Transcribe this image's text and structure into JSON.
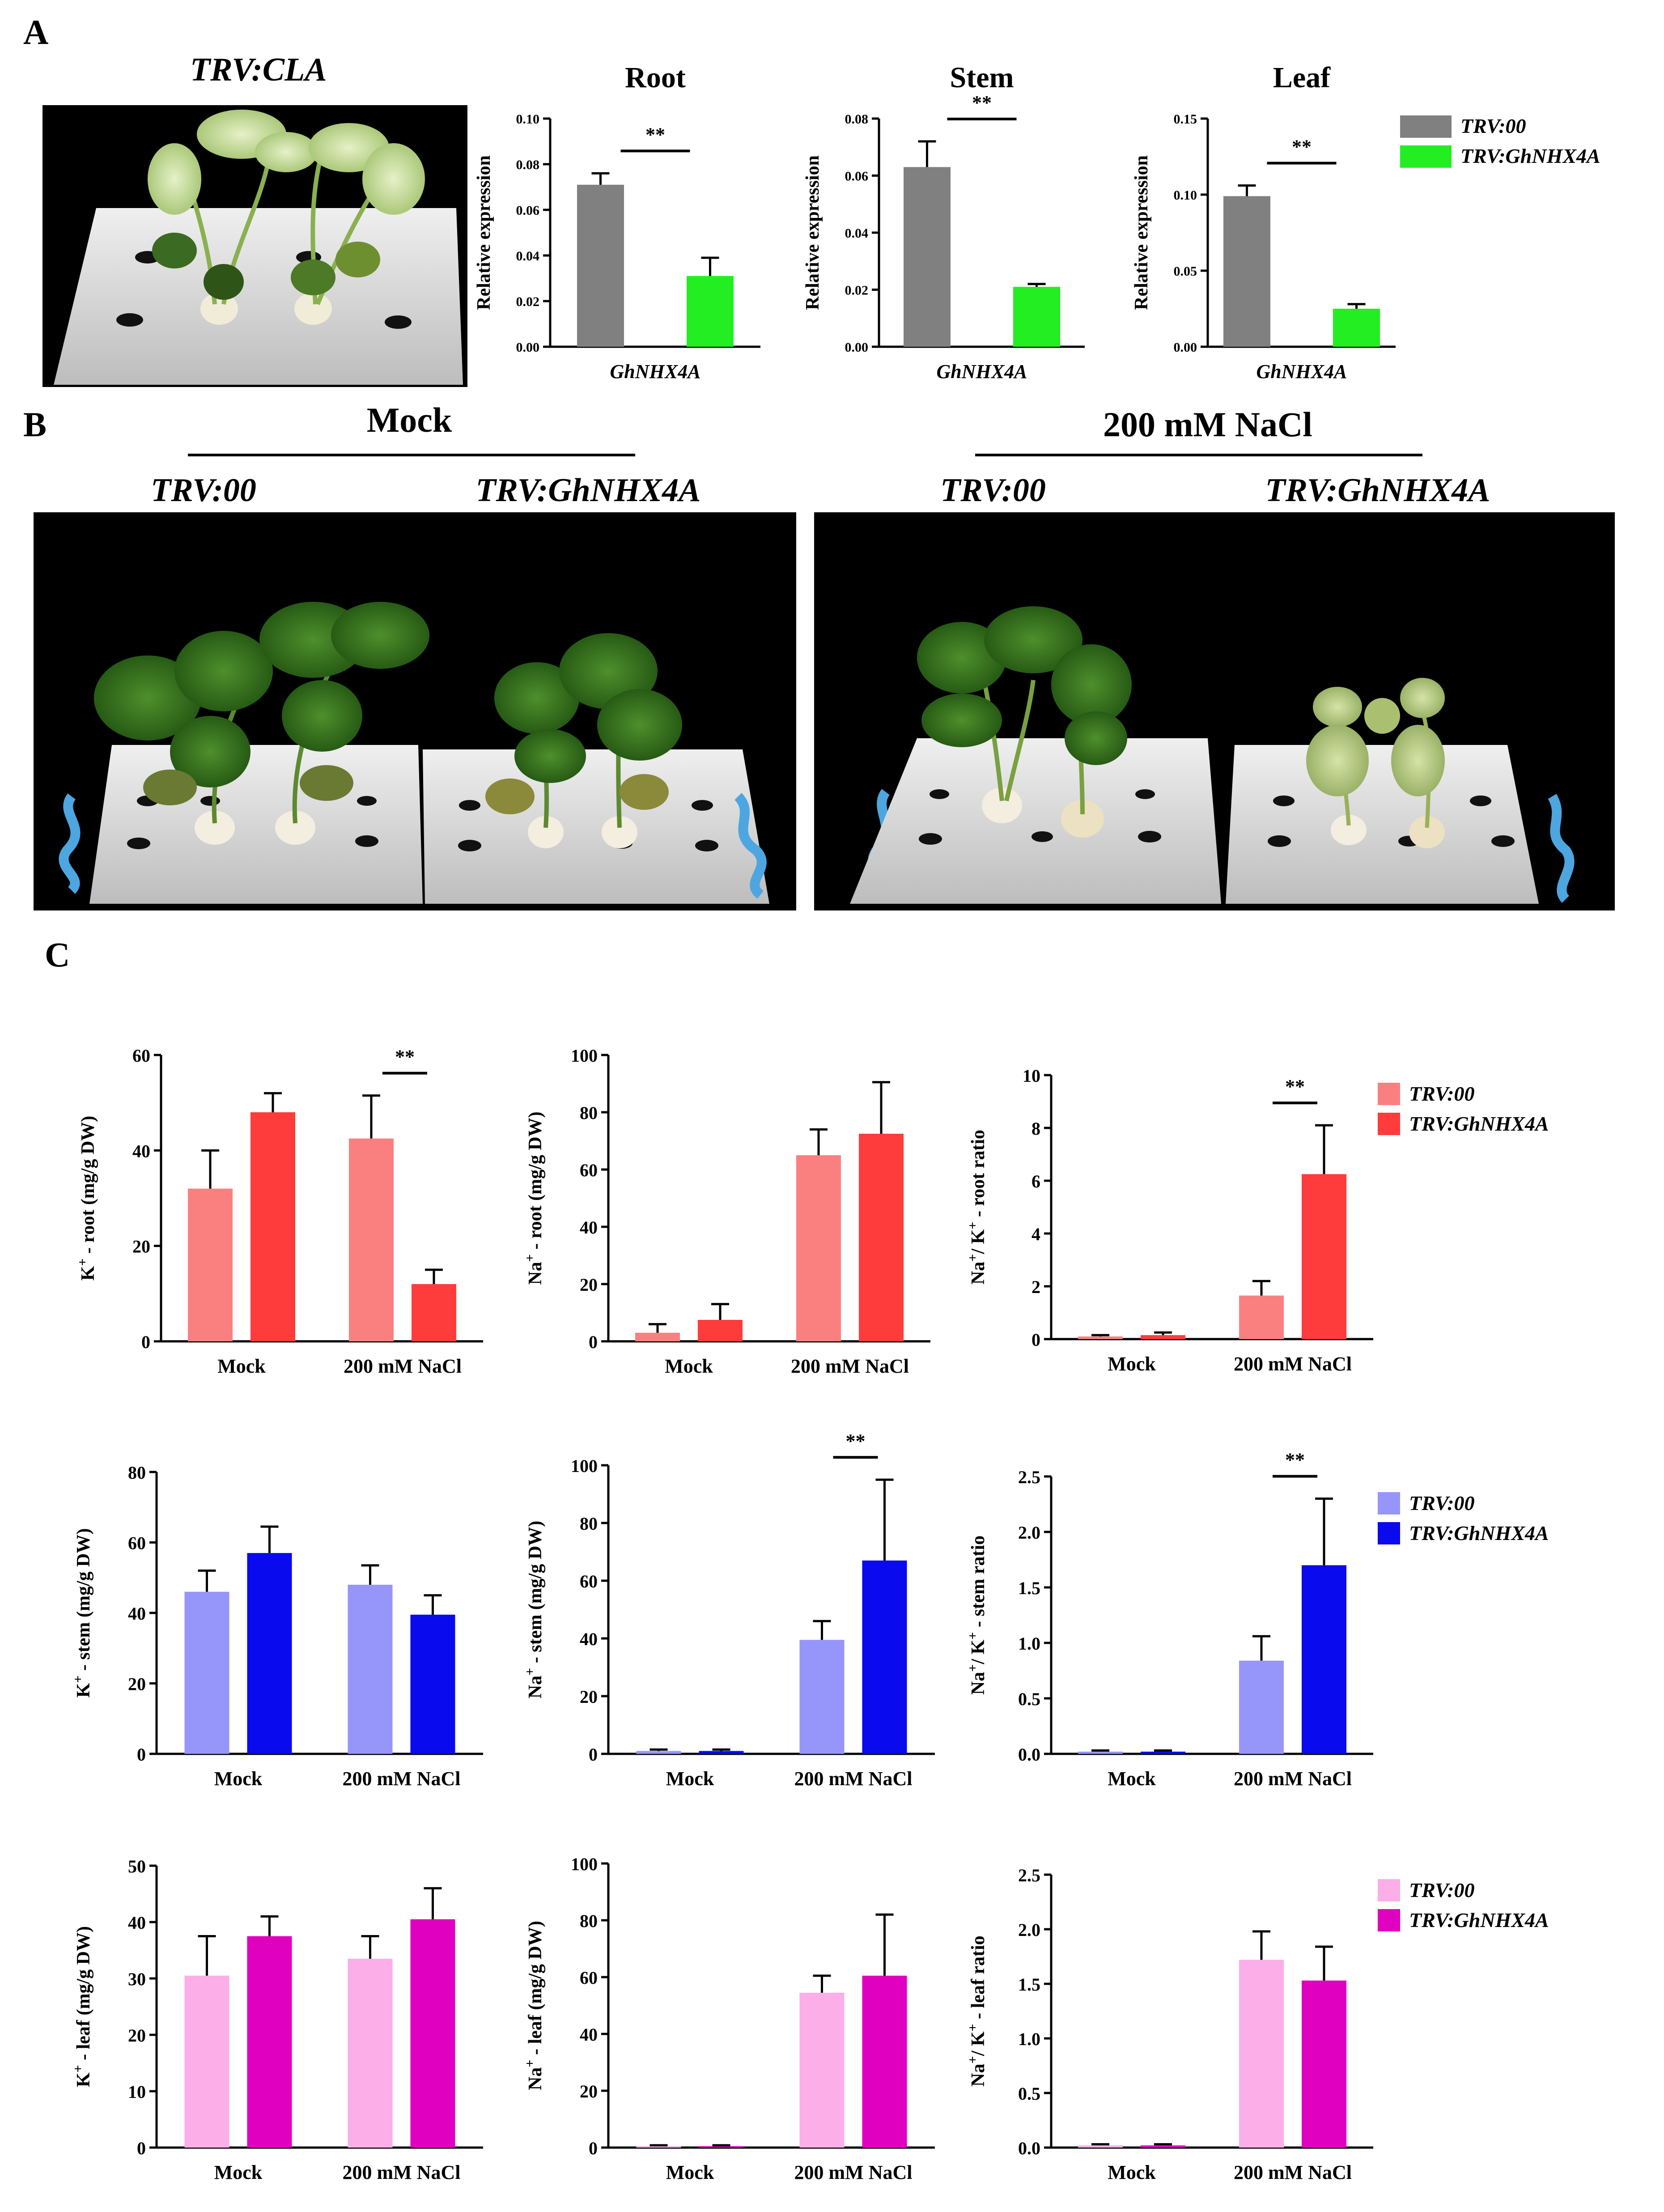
{
  "panels": {
    "a": "A",
    "b": "B",
    "c": "C"
  },
  "panel_a": {
    "photo_title": "TRV:CLA",
    "legend": [
      {
        "label": "TRV:00",
        "color": "#808080"
      },
      {
        "label": "TRV:GhNHX4A",
        "color": "#22ee22"
      }
    ]
  },
  "panel_b": {
    "mock_header": "Mock",
    "nacl_header": "200 mM NaCl",
    "genotype_1": "TRV:00",
    "genotype_2": "TRV:GhNHX4A"
  },
  "legend_c": {
    "root": [
      {
        "label": "TRV:00",
        "color": "#fa8080"
      },
      {
        "label": "TRV:GhNHX4A",
        "color": "#ff3c3c"
      }
    ],
    "stem": [
      {
        "label": "TRV:00",
        "color": "#9696fa"
      },
      {
        "label": "TRV:GhNHX4A",
        "color": "#0a0aee"
      }
    ],
    "leaf": [
      {
        "label": "TRV:00",
        "color": "#fbaee8"
      },
      {
        "label": "TRV:GhNHX4A",
        "color": "#e000c0"
      }
    ]
  },
  "chart_data": [
    {
      "id": "a_root",
      "type": "bar",
      "title": "Root",
      "ylabel": "Relative expression",
      "xlabel": "GhNHX4A",
      "categories": [
        "GhNHX4A"
      ],
      "ylim": [
        0,
        0.1
      ],
      "yticks": [
        "0.00",
        "0.02",
        "0.04",
        "0.06",
        "0.08",
        "0.10"
      ],
      "series": [
        {
          "name": "TRV:00",
          "values": [
            0.071
          ],
          "err": [
            0.005
          ]
        },
        {
          "name": "TRV:GhNHX4A",
          "values": [
            0.031
          ],
          "err": [
            0.008
          ]
        }
      ],
      "sig": "**"
    },
    {
      "id": "a_stem",
      "type": "bar",
      "title": "Stem",
      "ylabel": "Relative expression",
      "xlabel": "GhNHX4A",
      "categories": [
        "GhNHX4A"
      ],
      "ylim": [
        0,
        0.08
      ],
      "yticks": [
        "0.00",
        "0.02",
        "0.04",
        "0.06",
        "0.08"
      ],
      "series": [
        {
          "name": "TRV:00",
          "values": [
            0.063
          ],
          "err": [
            0.009
          ]
        },
        {
          "name": "TRV:GhNHX4A",
          "values": [
            0.021
          ],
          "err": [
            0.001
          ]
        }
      ],
      "sig": "**"
    },
    {
      "id": "a_leaf",
      "type": "bar",
      "title": "Leaf",
      "ylabel": "Relative expression",
      "xlabel": "GhNHX4A",
      "categories": [
        "GhNHX4A"
      ],
      "ylim": [
        0,
        0.15
      ],
      "yticks": [
        "0.00",
        "0.05",
        "0.10",
        "0.15"
      ],
      "series": [
        {
          "name": "TRV:00",
          "values": [
            0.099
          ],
          "err": [
            0.007
          ]
        },
        {
          "name": "TRV:GhNHX4A",
          "values": [
            0.025
          ],
          "err": [
            0.003
          ]
        }
      ],
      "sig": "**"
    },
    {
      "id": "k_root",
      "type": "bar",
      "ylabel": "K+ - root (mg/g DW)",
      "categories": [
        "Mock",
        "200 mM NaCl"
      ],
      "ylim": [
        0,
        60
      ],
      "yticks": [
        "0",
        "20",
        "40",
        "60"
      ],
      "series": [
        {
          "name": "TRV:00",
          "values": [
            32,
            42.5
          ],
          "err": [
            8,
            9
          ]
        },
        {
          "name": "TRV:GhNHX4A",
          "values": [
            48,
            12
          ],
          "err": [
            4,
            3
          ]
        }
      ],
      "sig": "**",
      "sig_group": 1
    },
    {
      "id": "na_root",
      "type": "bar",
      "ylabel": "Na+ - root (mg/g DW)",
      "categories": [
        "Mock",
        "200 mM NaCl"
      ],
      "ylim": [
        0,
        100
      ],
      "yticks": [
        "0",
        "20",
        "40",
        "60",
        "80",
        "100"
      ],
      "series": [
        {
          "name": "TRV:00",
          "values": [
            3,
            65
          ],
          "err": [
            3,
            9
          ]
        },
        {
          "name": "TRV:GhNHX4A",
          "values": [
            7.5,
            72.5
          ],
          "err": [
            5.5,
            18
          ]
        }
      ]
    },
    {
      "id": "ratio_root",
      "type": "bar",
      "ylabel": "Na+/ K+ - root ratio",
      "categories": [
        "Mock",
        "200 mM NaCl"
      ],
      "ylim": [
        0,
        10
      ],
      "yticks": [
        "0",
        "2",
        "4",
        "6",
        "8",
        "10"
      ],
      "series": [
        {
          "name": "TRV:00",
          "values": [
            0.1,
            1.65
          ],
          "err": [
            0.05,
            0.55
          ]
        },
        {
          "name": "TRV:GhNHX4A",
          "values": [
            0.15,
            6.25
          ],
          "err": [
            0.1,
            1.85
          ]
        }
      ],
      "sig": "**",
      "sig_group": 1
    },
    {
      "id": "k_stem",
      "type": "bar",
      "ylabel": "K+ - stem (mg/g DW)",
      "categories": [
        "Mock",
        "200 mM NaCl"
      ],
      "ylim": [
        0,
        80
      ],
      "yticks": [
        "0",
        "20",
        "40",
        "60",
        "80"
      ],
      "series": [
        {
          "name": "TRV:00",
          "values": [
            46,
            48
          ],
          "err": [
            6,
            5.5
          ]
        },
        {
          "name": "TRV:GhNHX4A",
          "values": [
            57,
            39.5
          ],
          "err": [
            7.5,
            5.5
          ]
        }
      ]
    },
    {
      "id": "na_stem",
      "type": "bar",
      "ylabel": "Na+ - stem (mg/g DW)",
      "categories": [
        "Mock",
        "200 mM NaCl"
      ],
      "ylim": [
        0,
        100
      ],
      "yticks": [
        "0",
        "20",
        "40",
        "60",
        "80",
        "100"
      ],
      "series": [
        {
          "name": "TRV:00",
          "values": [
            1,
            39.5
          ],
          "err": [
            0.5,
            6.5
          ]
        },
        {
          "name": "TRV:GhNHX4A",
          "values": [
            1,
            67
          ],
          "err": [
            0.5,
            28
          ]
        }
      ],
      "sig": "**",
      "sig_group": 1
    },
    {
      "id": "ratio_stem",
      "type": "bar",
      "ylabel": "Na+/ K+ - stem ratio",
      "categories": [
        "Mock",
        "200 mM NaCl"
      ],
      "ylim": [
        0,
        2.5
      ],
      "yticks": [
        "0.0",
        "0.5",
        "1.0",
        "1.5",
        "2.0",
        "2.5"
      ],
      "series": [
        {
          "name": "TRV:00",
          "values": [
            0.02,
            0.84
          ],
          "err": [
            0.01,
            0.22
          ]
        },
        {
          "name": "TRV:GhNHX4A",
          "values": [
            0.02,
            1.7
          ],
          "err": [
            0.01,
            0.6
          ]
        }
      ],
      "sig": "**",
      "sig_group": 1
    },
    {
      "id": "k_leaf",
      "type": "bar",
      "ylabel": "K+ - leaf (mg/g DW)",
      "categories": [
        "Mock",
        "200 mM NaCl"
      ],
      "ylim": [
        0,
        50
      ],
      "yticks": [
        "0",
        "10",
        "20",
        "30",
        "40",
        "50"
      ],
      "series": [
        {
          "name": "TRV:00",
          "values": [
            30.5,
            33.5
          ],
          "err": [
            7,
            4
          ]
        },
        {
          "name": "TRV:GhNHX4A",
          "values": [
            37.5,
            40.5
          ],
          "err": [
            3.5,
            5.5
          ]
        }
      ]
    },
    {
      "id": "na_leaf",
      "type": "bar",
      "ylabel": "Na+ - leaf (mg/g DW)",
      "categories": [
        "Mock",
        "200 mM NaCl"
      ],
      "ylim": [
        0,
        100
      ],
      "yticks": [
        "0",
        "20",
        "40",
        "60",
        "80",
        "100"
      ],
      "series": [
        {
          "name": "TRV:00",
          "values": [
            0.5,
            54.5
          ],
          "err": [
            0.3,
            6
          ]
        },
        {
          "name": "TRV:GhNHX4A",
          "values": [
            0.5,
            60.5
          ],
          "err": [
            0.3,
            21.5
          ]
        }
      ]
    },
    {
      "id": "ratio_leaf",
      "type": "bar",
      "ylabel": "Na+/ K+ - leaf ratio",
      "categories": [
        "Mock",
        "200 mM NaCl"
      ],
      "ylim": [
        0,
        2.5
      ],
      "yticks": [
        "0.0",
        "0.5",
        "1.0",
        "1.5",
        "2.0",
        "2.5"
      ],
      "series": [
        {
          "name": "TRV:00",
          "values": [
            0.02,
            1.72
          ],
          "err": [
            0.01,
            0.26
          ]
        },
        {
          "name": "TRV:GhNHX4A",
          "values": [
            0.02,
            1.53
          ],
          "err": [
            0.01,
            0.31
          ]
        }
      ]
    }
  ]
}
